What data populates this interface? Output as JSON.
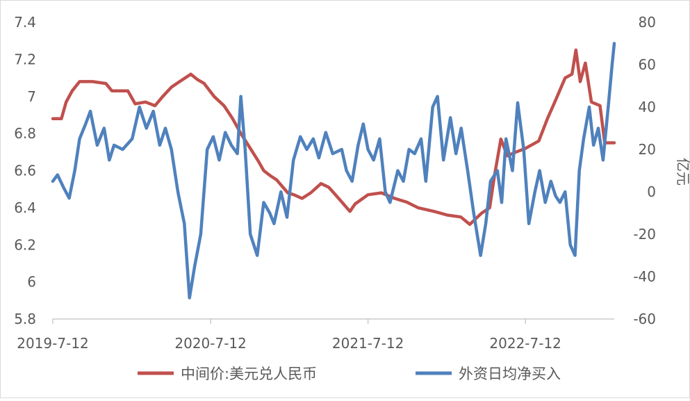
{
  "chart_data": {
    "type": "line",
    "x_ticks": [
      "2019-7-12",
      "2020-7-12",
      "2021-7-12",
      "2022-7-12"
    ],
    "x_range": [
      "2019-07-12",
      "2023-02-03"
    ],
    "y_left": {
      "range": [
        5.8,
        7.4
      ],
      "ticks": [
        "5.8",
        "6",
        "6.2",
        "6.4",
        "6.6",
        "6.8",
        "7",
        "7.2",
        "7.4"
      ]
    },
    "y_right": {
      "label": "亿元",
      "range": [
        -60,
        80
      ],
      "ticks": [
        "-60",
        "-40",
        "-20",
        "0",
        "20",
        "40",
        "60",
        "80"
      ]
    },
    "grid": false,
    "legend_position": "bottom",
    "series": [
      {
        "name": "中间价:美元兑人民币",
        "axis": "left",
        "color": "#C0504D",
        "points": [
          [
            "2019-07-12",
            6.88
          ],
          [
            "2019-08-01",
            6.88
          ],
          [
            "2019-08-12",
            6.97
          ],
          [
            "2019-08-26",
            7.03
          ],
          [
            "2019-09-12",
            7.08
          ],
          [
            "2019-10-12",
            7.08
          ],
          [
            "2019-11-12",
            7.07
          ],
          [
            "2019-11-26",
            7.03
          ],
          [
            "2019-12-12",
            7.03
          ],
          [
            "2020-01-02",
            7.03
          ],
          [
            "2020-01-19",
            6.96
          ],
          [
            "2020-02-12",
            6.97
          ],
          [
            "2020-03-05",
            6.95
          ],
          [
            "2020-03-23",
            7.0
          ],
          [
            "2020-04-12",
            7.05
          ],
          [
            "2020-05-01",
            7.08
          ],
          [
            "2020-05-27",
            7.12
          ],
          [
            "2020-06-12",
            7.09
          ],
          [
            "2020-06-27",
            7.07
          ],
          [
            "2020-07-20",
            7.0
          ],
          [
            "2020-08-12",
            6.95
          ],
          [
            "2020-09-01",
            6.88
          ],
          [
            "2020-09-20",
            6.8
          ],
          [
            "2020-10-12",
            6.72
          ],
          [
            "2020-10-31",
            6.65
          ],
          [
            "2020-11-12",
            6.6
          ],
          [
            "2020-11-29",
            6.57
          ],
          [
            "2020-12-12",
            6.55
          ],
          [
            "2021-01-07",
            6.48
          ],
          [
            "2021-01-21",
            6.47
          ],
          [
            "2021-02-09",
            6.45
          ],
          [
            "2021-03-01",
            6.48
          ],
          [
            "2021-03-25",
            6.53
          ],
          [
            "2021-04-12",
            6.51
          ],
          [
            "2021-05-05",
            6.45
          ],
          [
            "2021-05-31",
            6.38
          ],
          [
            "2021-06-12",
            6.42
          ],
          [
            "2021-07-12",
            6.47
          ],
          [
            "2021-08-12",
            6.48
          ],
          [
            "2021-09-12",
            6.45
          ],
          [
            "2021-10-10",
            6.43
          ],
          [
            "2021-11-05",
            6.4
          ],
          [
            "2021-12-12",
            6.38
          ],
          [
            "2022-01-12",
            6.36
          ],
          [
            "2022-02-12",
            6.35
          ],
          [
            "2022-03-05",
            6.31
          ],
          [
            "2022-04-01",
            6.37
          ],
          [
            "2022-04-20",
            6.4
          ],
          [
            "2022-05-01",
            6.57
          ],
          [
            "2022-05-16",
            6.77
          ],
          [
            "2022-05-31",
            6.68
          ],
          [
            "2022-06-20",
            6.7
          ],
          [
            "2022-07-12",
            6.72
          ],
          [
            "2022-08-12",
            6.76
          ],
          [
            "2022-09-01",
            6.88
          ],
          [
            "2022-09-20",
            6.98
          ],
          [
            "2022-10-12",
            7.1
          ],
          [
            "2022-10-28",
            7.12
          ],
          [
            "2022-11-06",
            7.25
          ],
          [
            "2022-11-16",
            7.08
          ],
          [
            "2022-11-28",
            7.18
          ],
          [
            "2022-12-12",
            6.97
          ],
          [
            "2023-01-01",
            6.95
          ],
          [
            "2023-01-12",
            6.75
          ],
          [
            "2023-02-03",
            6.75
          ]
        ]
      },
      {
        "name": "外资日均净买入",
        "axis": "right",
        "color": "#4F81BD",
        "points": [
          [
            "2019-07-12",
            5
          ],
          [
            "2019-07-23",
            8
          ],
          [
            "2019-08-06",
            2
          ],
          [
            "2019-08-19",
            -3
          ],
          [
            "2019-09-01",
            10
          ],
          [
            "2019-09-12",
            25
          ],
          [
            "2019-09-26",
            32
          ],
          [
            "2019-10-07",
            38
          ],
          [
            "2019-10-23",
            22
          ],
          [
            "2019-11-08",
            30
          ],
          [
            "2019-11-20",
            15
          ],
          [
            "2019-12-01",
            22
          ],
          [
            "2019-12-21",
            20
          ],
          [
            "2020-01-12",
            25
          ],
          [
            "2020-01-29",
            40
          ],
          [
            "2020-02-14",
            30
          ],
          [
            "2020-03-01",
            38
          ],
          [
            "2020-03-16",
            22
          ],
          [
            "2020-03-29",
            30
          ],
          [
            "2020-04-12",
            20
          ],
          [
            "2020-04-27",
            0
          ],
          [
            "2020-05-12",
            -15
          ],
          [
            "2020-05-24",
            -50
          ],
          [
            "2020-06-05",
            -35
          ],
          [
            "2020-06-19",
            -20
          ],
          [
            "2020-07-04",
            20
          ],
          [
            "2020-07-18",
            26
          ],
          [
            "2020-08-01",
            15
          ],
          [
            "2020-08-15",
            28
          ],
          [
            "2020-08-29",
            22
          ],
          [
            "2020-09-12",
            18
          ],
          [
            "2020-09-20",
            45
          ],
          [
            "2020-09-30",
            20
          ],
          [
            "2020-10-12",
            -20
          ],
          [
            "2020-10-28",
            -30
          ],
          [
            "2020-11-12",
            -5
          ],
          [
            "2020-11-26",
            -10
          ],
          [
            "2020-12-06",
            -15
          ],
          [
            "2020-12-22",
            0
          ],
          [
            "2021-01-05",
            -12
          ],
          [
            "2021-01-20",
            15
          ],
          [
            "2021-02-05",
            26
          ],
          [
            "2021-02-20",
            20
          ],
          [
            "2021-03-07",
            25
          ],
          [
            "2021-03-20",
            16
          ],
          [
            "2021-04-05",
            28
          ],
          [
            "2021-04-21",
            18
          ],
          [
            "2021-05-12",
            20
          ],
          [
            "2021-05-23",
            10
          ],
          [
            "2021-06-05",
            5
          ],
          [
            "2021-06-19",
            22
          ],
          [
            "2021-07-01",
            32
          ],
          [
            "2021-07-12",
            20
          ],
          [
            "2021-07-25",
            15
          ],
          [
            "2021-08-08",
            25
          ],
          [
            "2021-08-21",
            0
          ],
          [
            "2021-09-01",
            -5
          ],
          [
            "2021-09-19",
            10
          ],
          [
            "2021-10-02",
            5
          ],
          [
            "2021-10-15",
            20
          ],
          [
            "2021-10-28",
            18
          ],
          [
            "2021-11-12",
            25
          ],
          [
            "2021-11-23",
            5
          ],
          [
            "2021-12-09",
            40
          ],
          [
            "2021-12-20",
            45
          ],
          [
            "2022-01-03",
            15
          ],
          [
            "2022-01-19",
            35
          ],
          [
            "2022-02-01",
            18
          ],
          [
            "2022-02-13",
            30
          ],
          [
            "2022-02-28",
            10
          ],
          [
            "2022-03-14",
            -10
          ],
          [
            "2022-03-30",
            -30
          ],
          [
            "2022-04-11",
            -15
          ],
          [
            "2022-04-22",
            5
          ],
          [
            "2022-05-08",
            10
          ],
          [
            "2022-05-18",
            -5
          ],
          [
            "2022-05-28",
            25
          ],
          [
            "2022-06-12",
            10
          ],
          [
            "2022-06-24",
            42
          ],
          [
            "2022-07-08",
            20
          ],
          [
            "2022-07-20",
            -15
          ],
          [
            "2022-08-03",
            0
          ],
          [
            "2022-08-14",
            10
          ],
          [
            "2022-08-27",
            -5
          ],
          [
            "2022-09-09",
            5
          ],
          [
            "2022-09-20",
            -2
          ],
          [
            "2022-09-30",
            -5
          ],
          [
            "2022-10-12",
            0
          ],
          [
            "2022-10-24",
            -25
          ],
          [
            "2022-11-04",
            -30
          ],
          [
            "2022-11-14",
            10
          ],
          [
            "2022-11-24",
            25
          ],
          [
            "2022-12-07",
            40
          ],
          [
            "2022-12-17",
            22
          ],
          [
            "2022-12-28",
            30
          ],
          [
            "2023-01-08",
            15
          ],
          [
            "2023-01-20",
            40
          ],
          [
            "2023-01-29",
            60
          ],
          [
            "2023-02-03",
            70
          ]
        ]
      }
    ]
  }
}
